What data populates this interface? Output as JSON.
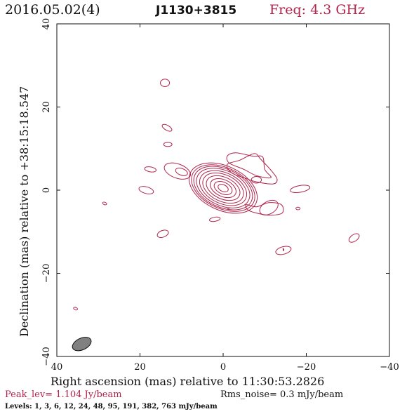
{
  "header": {
    "date": "2016.05.02(4)",
    "source": "J1130+3815",
    "frequency": "Freq: 4.3 GHz"
  },
  "footer": {
    "peak": "Peak_lev=  1.104 Jy/beam",
    "rms": "Rms_noise=  0.3 mJy/beam",
    "levels": "Levels:  1,  3,  6,  12,  24,  48,  95,  191,  382,  763 mJy/beam"
  },
  "colors": {
    "contour": "#b0244a",
    "beam_fill": "#808080",
    "axes": "#111111"
  },
  "chart_data": {
    "type": "contour",
    "xlabel": "Right ascension (mas) relative to 11:30:53.2826",
    "ylabel": "Declination (mas) relative to +38:15:18.547",
    "xlim": [
      40,
      -40
    ],
    "ylim": [
      -40,
      40
    ],
    "x_ticks": [
      40,
      20,
      0,
      -20,
      -40
    ],
    "x_tick_labels": [
      "40",
      "20",
      "0",
      "−20",
      "−40"
    ],
    "y_ticks": [
      -40,
      -20,
      0,
      20,
      40
    ],
    "y_tick_labels": [
      "−40",
      "−20",
      "0",
      "20",
      "40"
    ],
    "peak_flux_jy_per_beam": 1.104,
    "rms_noise_mjy_per_beam": 0.3,
    "contour_levels_mjy_per_beam": [
      1,
      3,
      6,
      12,
      24,
      48,
      95,
      191,
      382,
      763
    ],
    "core": {
      "x": 0.0,
      "y": 0.5,
      "semi_axes_mas": [
        [
          1.3,
          0.8
        ],
        [
          2.3,
          1.4
        ],
        [
          3.3,
          2.0
        ],
        [
          4.3,
          2.6
        ],
        [
          5.2,
          3.2
        ],
        [
          6.0,
          3.7
        ],
        [
          6.8,
          4.2
        ],
        [
          7.5,
          4.6
        ],
        [
          8.1,
          4.9
        ],
        [
          8.7,
          5.3
        ]
      ],
      "position_angle_deg": 25
    },
    "features": [
      {
        "x": 14.0,
        "y": 25.8,
        "rx": 1.1,
        "ry": 0.9,
        "pa": 0
      },
      {
        "x": 13.3,
        "y": 11.0,
        "rx": 1.0,
        "ry": 0.5,
        "pa": 0
      },
      {
        "x": 13.5,
        "y": 15.0,
        "rx": 1.3,
        "ry": 0.6,
        "pa": 30
      },
      {
        "x": 17.5,
        "y": 5.0,
        "rx": 1.4,
        "ry": 0.6,
        "pa": 10
      },
      {
        "x": 11.0,
        "y": 4.6,
        "rx": 3.3,
        "ry": 1.7,
        "pa": 20
      },
      {
        "x": 10.0,
        "y": 4.4,
        "rx": 1.5,
        "ry": 0.8,
        "pa": 20
      },
      {
        "x": -8.0,
        "y": 2.5,
        "rx": 1.2,
        "ry": 0.8,
        "pa": 0
      },
      {
        "x": 18.5,
        "y": 0.0,
        "rx": 1.8,
        "ry": 0.8,
        "pa": 15
      },
      {
        "x": 28.5,
        "y": -3.2,
        "rx": 0.5,
        "ry": 0.3,
        "pa": 20
      },
      {
        "x": -18.5,
        "y": 0.3,
        "rx": 2.4,
        "ry": 0.8,
        "pa": -10
      },
      {
        "x": -11.0,
        "y": -4.2,
        "rx": 2.4,
        "ry": 1.5,
        "pa": -30
      },
      {
        "x": -18.0,
        "y": -4.4,
        "rx": 0.5,
        "ry": 0.3,
        "pa": 0
      },
      {
        "x": 2.0,
        "y": -7.0,
        "rx": 1.3,
        "ry": 0.5,
        "pa": -10
      },
      {
        "x": 14.5,
        "y": -10.5,
        "rx": 1.4,
        "ry": 0.8,
        "pa": -20
      },
      {
        "x": -31.5,
        "y": -11.5,
        "rx": 1.4,
        "ry": 0.8,
        "pa": -35
      },
      {
        "x": -14.5,
        "y": -14.5,
        "rx": 1.9,
        "ry": 0.9,
        "pa": -15
      },
      {
        "x": 35.5,
        "y": -28.5,
        "rx": 0.5,
        "ry": 0.3,
        "pa": 20
      }
    ],
    "extensions": [
      [
        [
          -1.0,
          6.2
        ],
        [
          -4.0,
          7.2
        ],
        [
          -7.5,
          8.8
        ],
        [
          -9.0,
          7.5
        ],
        [
          -12.0,
          4.2
        ],
        [
          -13.0,
          2.5
        ],
        [
          -12.0,
          1.5
        ],
        [
          -8.0,
          2.0
        ],
        [
          -5.0,
          3.0
        ],
        [
          -2.0,
          4.2
        ]
      ],
      [
        [
          -1.0,
          8.2
        ],
        [
          -3.0,
          9.0
        ],
        [
          -7.0,
          8.2
        ],
        [
          -9.5,
          8.0
        ],
        [
          -10.0,
          5.0
        ],
        [
          -11.5,
          3.0
        ],
        [
          -8.0,
          3.5
        ],
        [
          -5.0,
          5.0
        ],
        [
          -1.5,
          6.5
        ]
      ],
      [
        [
          -5.5,
          -3.5
        ],
        [
          -8.0,
          -4.0
        ],
        [
          -11.0,
          -3.0
        ],
        [
          -14.0,
          -3.5
        ],
        [
          -14.2,
          -5.5
        ],
        [
          -11.0,
          -6.0
        ],
        [
          -8.0,
          -5.5
        ],
        [
          -6.0,
          -4.8
        ]
      ],
      [
        [
          -1.6,
          -4.3
        ],
        [
          -1.0,
          -4.5
        ]
      ],
      [
        [
          -14.4,
          -14.0
        ],
        [
          -14.6,
          -14.3
        ],
        [
          -14.5,
          -14.6
        ]
      ]
    ],
    "beam": {
      "x": 34.0,
      "y": -37.0,
      "major_mas": 2.4,
      "minor_mas": 1.4,
      "position_angle_deg": -25
    }
  }
}
